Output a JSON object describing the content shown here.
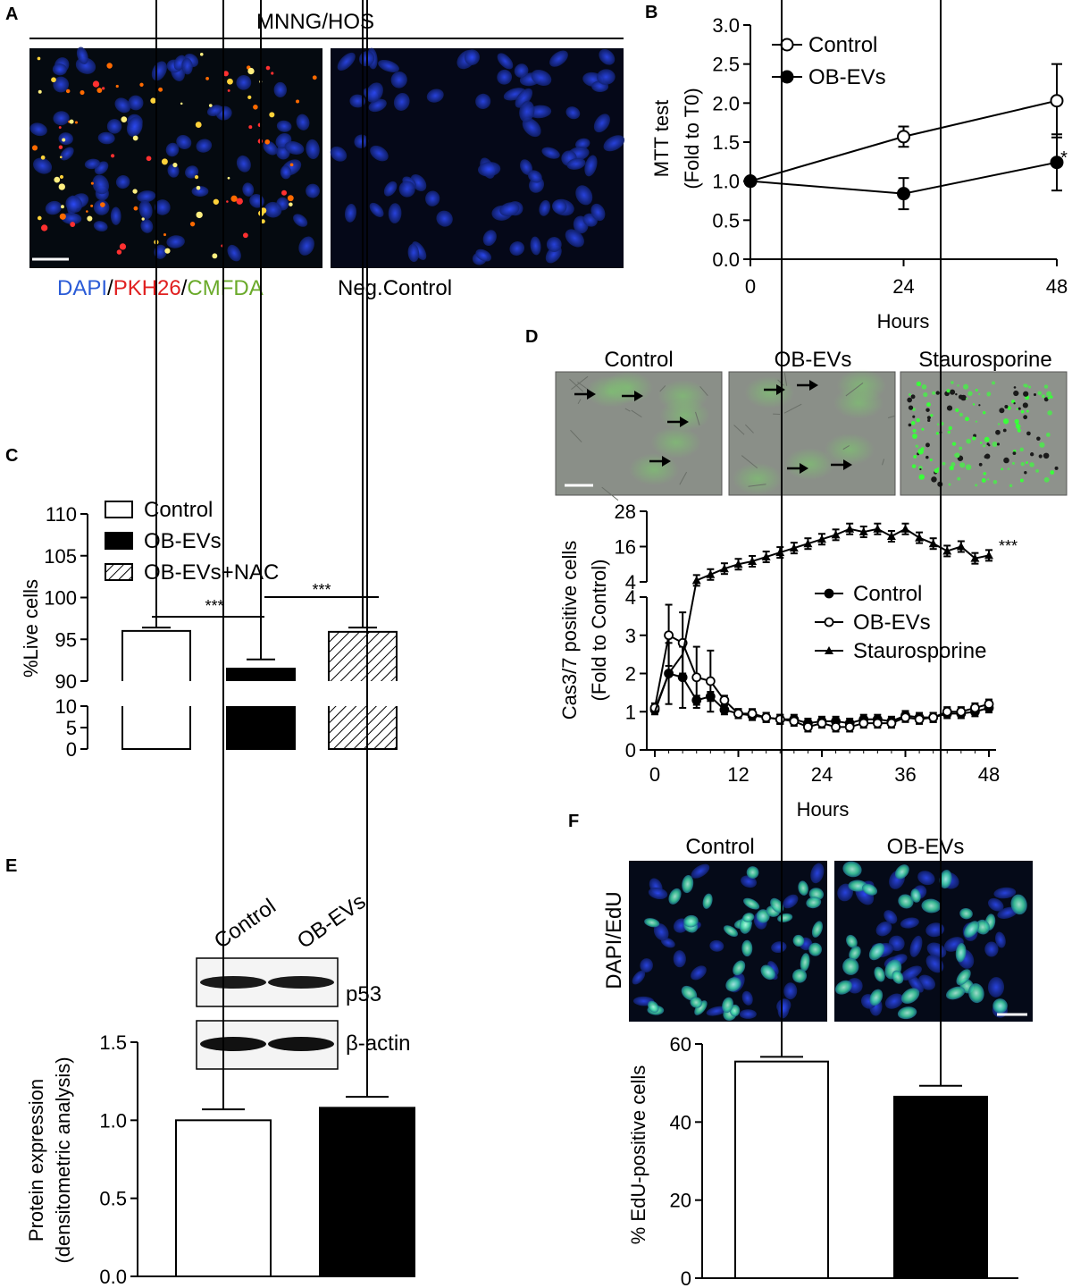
{
  "panel_a": {
    "letter": "A",
    "header": "MNNG/HOS",
    "legend_dapi": "DAPI",
    "legend_sep": "/",
    "legend_pkh": "PKH26",
    "legend_cmfda": "CMFDA",
    "neg_label": "Neg.Control"
  },
  "panel_d_images": {
    "letter": "D",
    "labels": [
      "Control",
      "OB-EVs",
      "Staurosporine"
    ]
  },
  "panel_e_blot": {
    "letter": "E",
    "lane_labels": [
      "Control",
      "OB-EVs"
    ],
    "band_labels": [
      "p53",
      "β-actin"
    ]
  },
  "panel_f_images": {
    "letter": "F",
    "labels": [
      "Control",
      "OB-EVs"
    ],
    "side_label": "DAPI/EdU"
  },
  "colors": {
    "dapi": "#2a5bd7",
    "pkh26": "#e02020",
    "cmfda": "#6aaa2a",
    "micrograph_blue": "#1a2fbf"
  },
  "chart_data": [
    {
      "id": "B",
      "letter": "B",
      "type": "line",
      "xlabel": "Hours",
      "ylabel_lines": [
        "MTT test",
        "(Fold to T0)"
      ],
      "x": [
        0,
        24,
        48
      ],
      "xticks": [
        "0",
        "24",
        "48"
      ],
      "ylim": [
        0,
        3.0
      ],
      "yticks": [
        "0.0",
        "0.5",
        "1.0",
        "1.5",
        "2.0",
        "2.5",
        "3.0"
      ],
      "series": [
        {
          "name": "Control",
          "marker": "open-circle",
          "values": [
            1.0,
            1.57,
            2.03
          ],
          "errors": [
            0,
            0.13,
            0.47
          ]
        },
        {
          "name": "OB-EVs",
          "marker": "filled-circle",
          "values": [
            1.0,
            0.84,
            1.24
          ],
          "errors": [
            0,
            0.2,
            0.36
          ]
        }
      ],
      "annotation": "*",
      "legend_position": "top-left"
    },
    {
      "id": "C",
      "letter": "C",
      "type": "bar",
      "ylabel": "%Live cells",
      "categories": [
        "Control",
        "OB-EVs",
        "OB-EVs+NAC"
      ],
      "values": [
        96.0,
        91.5,
        95.9
      ],
      "errors": [
        0.4,
        1.1,
        0.5
      ],
      "fills": [
        "open",
        "solid",
        "hatched"
      ],
      "y_axis_broken": true,
      "lower_yticks": [
        "0",
        "5",
        "10"
      ],
      "upper_yticks": [
        "90",
        "95",
        "100",
        "105",
        "110"
      ],
      "significance": [
        "***",
        "***"
      ],
      "legend_position": "top-left"
    },
    {
      "id": "D",
      "letter": "D",
      "type": "line",
      "xlabel": "Hours",
      "ylabel_lines": [
        "Cas3/7 positive cells",
        "(Fold to Control)"
      ],
      "x": [
        0,
        2,
        4,
        6,
        8,
        10,
        12,
        14,
        16,
        18,
        20,
        22,
        24,
        26,
        28,
        30,
        32,
        34,
        36,
        38,
        40,
        42,
        44,
        46,
        48
      ],
      "xticks": [
        "0",
        "12",
        "24",
        "36",
        "48"
      ],
      "y_axis_broken": true,
      "lower_yticks": [
        "0",
        "1",
        "2",
        "3",
        "4"
      ],
      "upper_yticks": [
        "4",
        "16",
        "28"
      ],
      "series": [
        {
          "name": "Control",
          "marker": "filled-circle-small",
          "values": [
            1.05,
            2.0,
            1.9,
            1.3,
            1.4,
            1.05,
            0.95,
            0.9,
            0.85,
            0.8,
            0.8,
            0.7,
            0.75,
            0.75,
            0.7,
            0.8,
            0.8,
            0.75,
            0.9,
            0.85,
            0.85,
            0.95,
            0.95,
            1.0,
            1.1
          ]
        },
        {
          "name": "OB-EVs",
          "marker": "open-circle-small",
          "values": [
            1.1,
            3.0,
            2.8,
            1.9,
            1.8,
            1.3,
            0.95,
            0.95,
            0.85,
            0.8,
            0.75,
            0.6,
            0.7,
            0.6,
            0.6,
            0.7,
            0.7,
            0.7,
            0.85,
            0.8,
            0.85,
            1.0,
            1.0,
            1.1,
            1.2
          ]
        },
        {
          "name": "Staurosporine",
          "marker": "filled-triangle",
          "values": [
            1.0,
            2.0,
            2.5,
            4.5,
            6.5,
            8.5,
            10,
            11,
            12.5,
            14,
            15.5,
            17,
            18.5,
            20,
            22,
            21,
            22,
            19.5,
            22,
            19,
            17,
            14.5,
            16,
            12,
            13
          ]
        }
      ],
      "annotation": "***",
      "legend_position": "right"
    },
    {
      "id": "E",
      "letter": "E",
      "type": "bar",
      "ylabel_lines": [
        "Protein expression",
        "(densitometric analysis)"
      ],
      "categories": [
        "Control",
        "OB-EVs"
      ],
      "values": [
        1.0,
        1.08
      ],
      "errors": [
        0.07,
        0.07
      ],
      "fills": [
        "open",
        "solid"
      ],
      "ylim": [
        0,
        1.5
      ],
      "yticks": [
        "0.0",
        "0.5",
        "1.0",
        "1.5"
      ]
    },
    {
      "id": "F",
      "letter": "F",
      "type": "bar",
      "ylabel": "% EdU-positive cells",
      "categories": [
        "Control",
        "OB-EVs"
      ],
      "values": [
        55.5,
        46.5
      ],
      "errors": [
        1.2,
        2.8
      ],
      "fills": [
        "open",
        "solid"
      ],
      "ylim": [
        0,
        60
      ],
      "yticks": [
        "0",
        "20",
        "40",
        "60"
      ]
    }
  ]
}
